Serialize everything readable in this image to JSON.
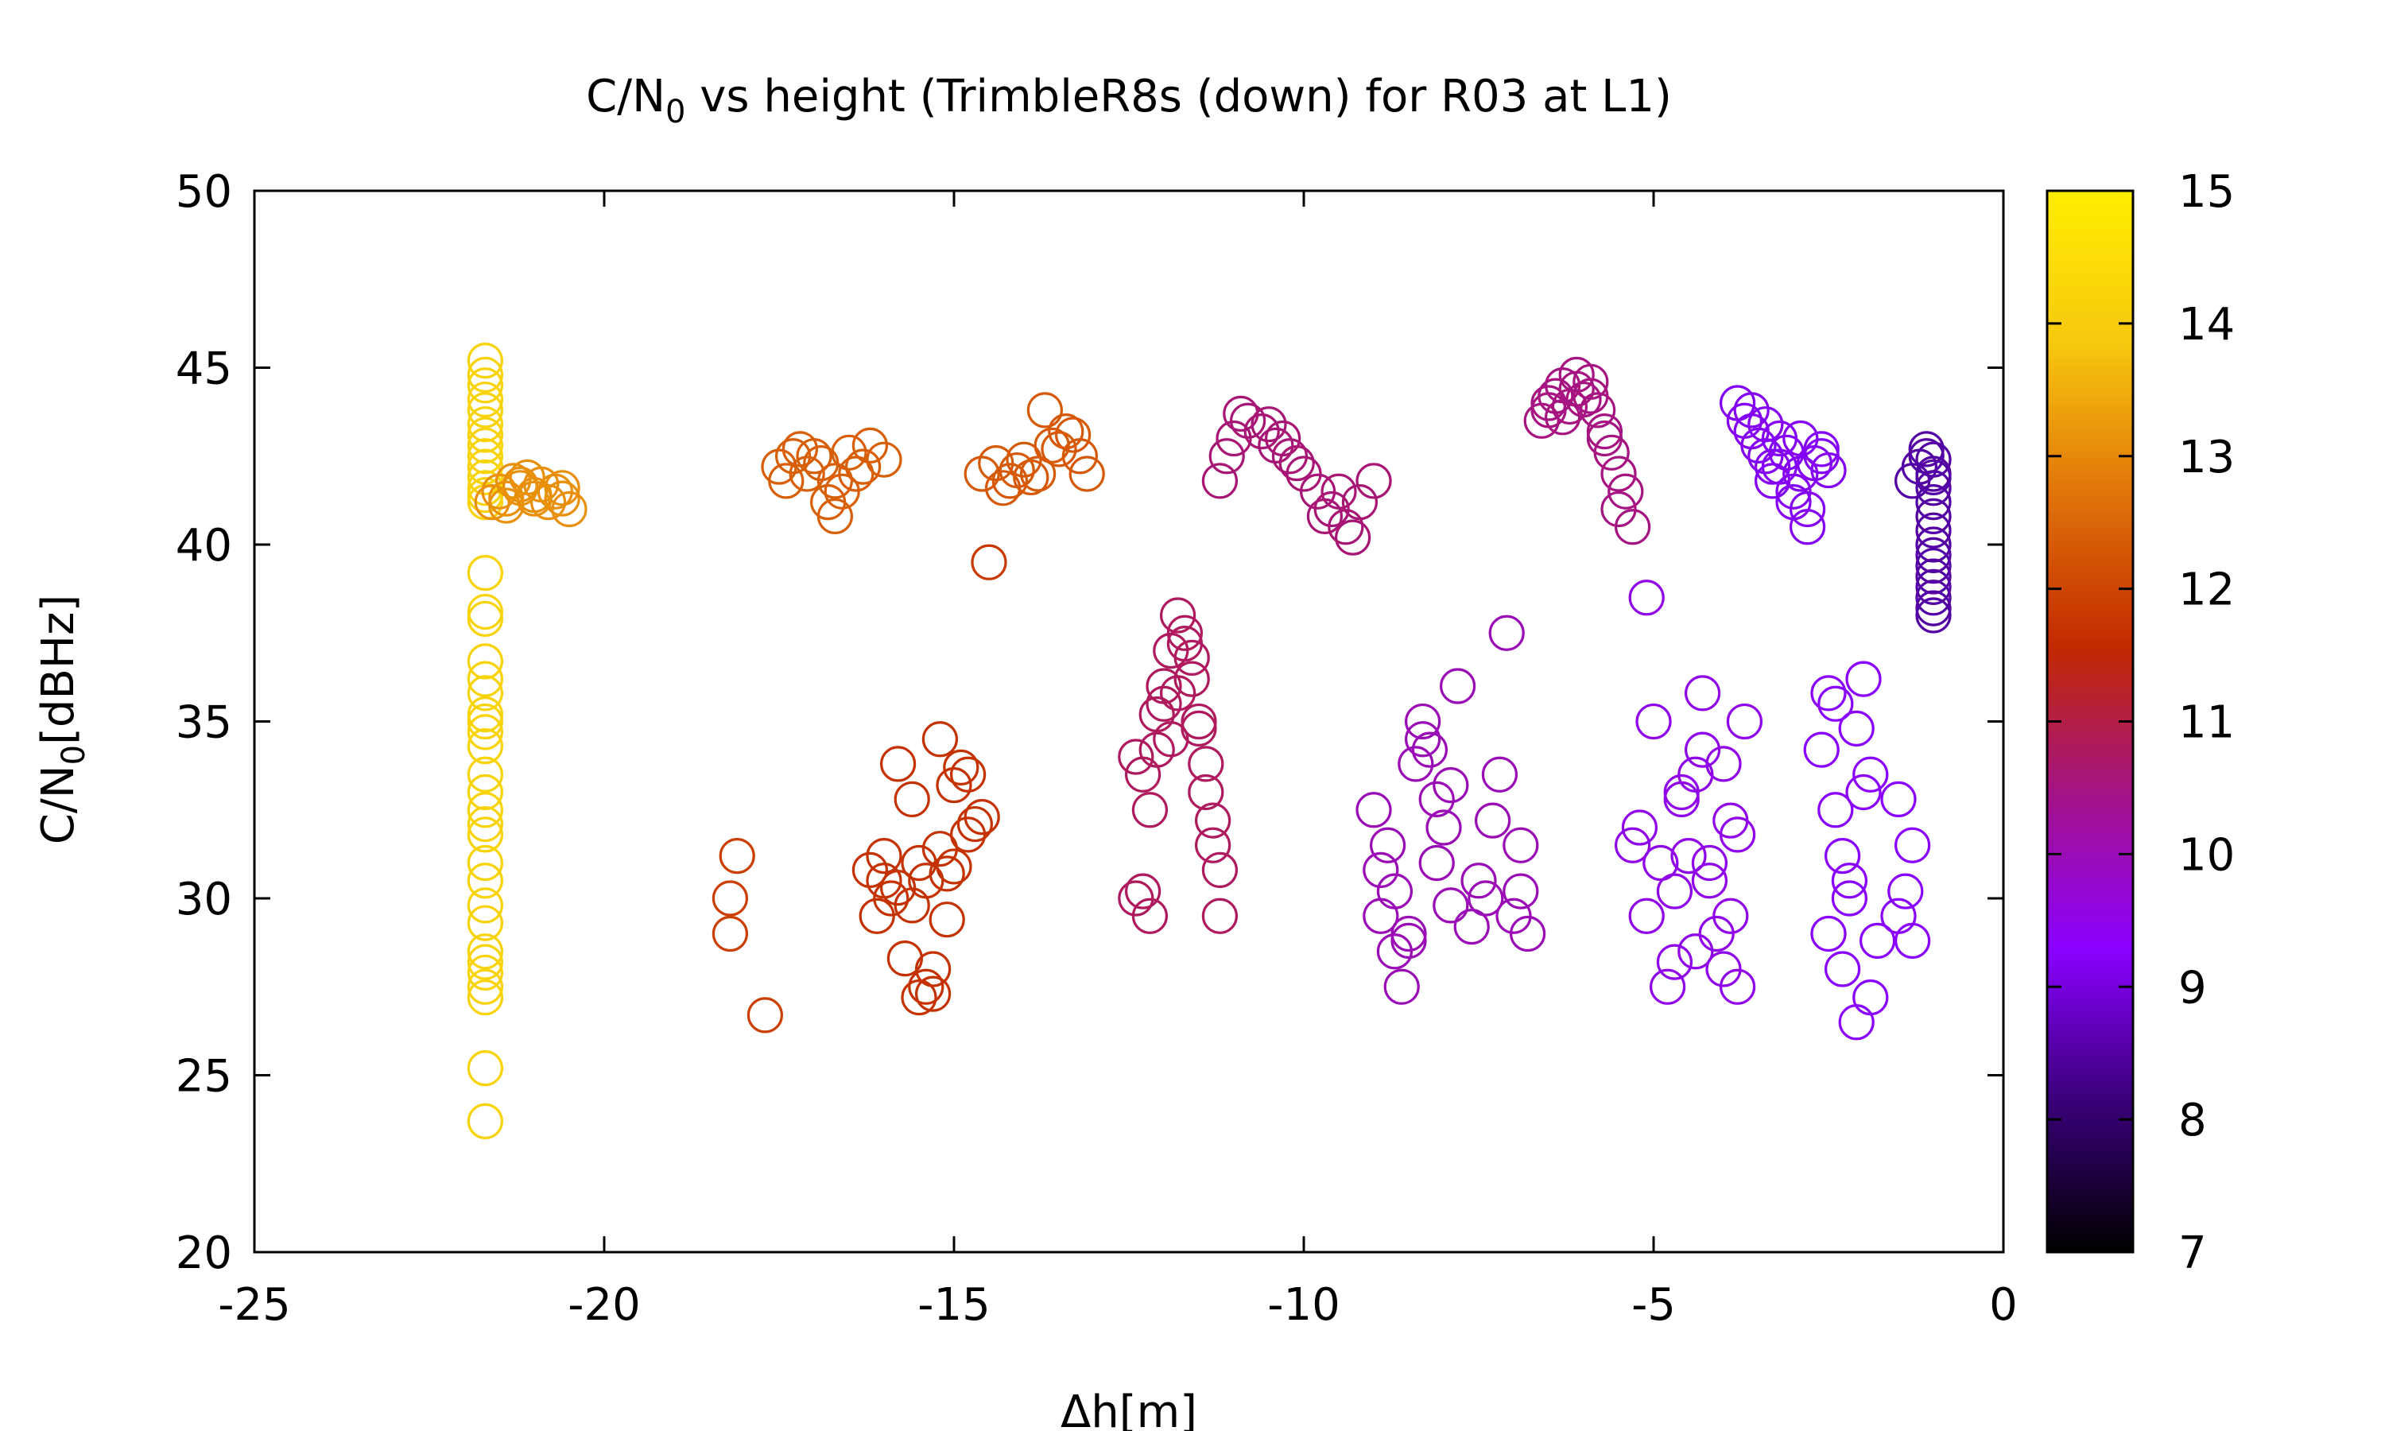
{
  "chart_data": {
    "type": "scatter",
    "title_main": "C/N",
    "title_sub": "0",
    "title_rest": " vs height (TrimbleR8s (down) for R03 at L1)",
    "xlabel": "Δh[m]",
    "ylabel_main": "C/N",
    "ylabel_sub": "0",
    "ylabel_rest": "[dBHz]",
    "xlim": [
      -25,
      0
    ],
    "ylim": [
      20,
      50
    ],
    "x_ticks": [
      -25,
      -20,
      -15,
      -10,
      -5,
      0
    ],
    "y_ticks": [
      20,
      25,
      30,
      35,
      40,
      45,
      50
    ],
    "colorbar": {
      "range": [
        7,
        15
      ],
      "ticks": [
        7,
        8,
        9,
        10,
        11,
        12,
        13,
        14,
        15
      ],
      "palette": [
        "#000000",
        "#3a007a",
        "#8a00ff",
        "#a4138a",
        "#c22a00",
        "#e0730a",
        "#f7c80e",
        "#ffee00"
      ]
    },
    "marker": "open-circle",
    "grid": false,
    "clusters": [
      {
        "c": 14.2,
        "x": [
          -21.7,
          -21.7,
          -21.7,
          -21.7,
          -21.7,
          -21.7,
          -21.7,
          -21.7,
          -21.7,
          -21.7,
          -21.7,
          -21.7,
          -21.7,
          -21.7
        ],
        "y": [
          45.2,
          44.8,
          44.5,
          44.1,
          43.8,
          43.4,
          43.1,
          42.8,
          42.5,
          42.2,
          41.9,
          41.6,
          41.4,
          41.2
        ]
      },
      {
        "c": 13.1,
        "x": [
          -21.6,
          -21.5,
          -21.4,
          -21.3,
          -21.2,
          -21.1,
          -21.0,
          -20.9,
          -20.8,
          -20.7,
          -20.6,
          -20.5,
          -21.4,
          -21.0,
          -20.6,
          -21.2
        ],
        "y": [
          41.2,
          41.5,
          41.3,
          41.8,
          41.6,
          41.9,
          41.4,
          41.7,
          41.2,
          41.5,
          41.3,
          41.0,
          41.1,
          41.3,
          41.6,
          41.7
        ]
      },
      {
        "c": 14.2,
        "x": [
          -21.7,
          -21.7,
          -21.7,
          -21.7,
          -21.7,
          -21.7,
          -21.7,
          -21.7,
          -21.7,
          -21.7,
          -21.7,
          -21.7,
          -21.7,
          -21.7,
          -21.7,
          -21.7,
          -21.7,
          -21.7,
          -21.7,
          -21.7,
          -21.7,
          -21.7,
          -21.7,
          -21.7,
          -21.7,
          -21.7
        ],
        "y": [
          39.2,
          38.1,
          37.9,
          36.7,
          36.2,
          35.8,
          35.2,
          35.0,
          34.7,
          34.3,
          33.5,
          33.0,
          32.5,
          32.1,
          31.8,
          31.0,
          30.5,
          29.8,
          29.3,
          28.5,
          28.2,
          27.9,
          27.5,
          27.2,
          25.2,
          23.7
        ]
      },
      {
        "c": 11.9,
        "x": [
          -18.1,
          -18.2,
          -18.2,
          -17.7
        ],
        "y": [
          31.2,
          30.0,
          29.0,
          26.7
        ]
      },
      {
        "c": 12.4,
        "x": [
          -17.5,
          -17.3,
          -17.1,
          -16.9,
          -16.7,
          -16.5,
          -16.3,
          -17.4,
          -17.0,
          -16.6,
          -16.2,
          -16.8,
          -16.4,
          -17.2,
          -16.0,
          -16.7
        ],
        "y": [
          42.2,
          42.5,
          42.0,
          42.3,
          41.8,
          42.6,
          42.2,
          41.8,
          42.5,
          41.5,
          42.8,
          41.2,
          42.0,
          42.7,
          42.4,
          40.8
        ]
      },
      {
        "c": 12.3,
        "x": [
          -14.6,
          -14.4,
          -14.2,
          -14.0,
          -13.8,
          -13.6,
          -13.4,
          -13.2,
          -13.1,
          -14.3,
          -13.9,
          -13.5,
          -13.7,
          -13.3,
          -14.1
        ],
        "y": [
          42.0,
          42.3,
          41.8,
          42.4,
          42.0,
          42.8,
          43.2,
          42.5,
          42.0,
          41.6,
          41.9,
          42.7,
          43.8,
          43.1,
          42.1
        ]
      },
      {
        "c": 11.8,
        "x": [
          -14.5
        ],
        "y": [
          39.5
        ]
      },
      {
        "c": 11.7,
        "x": [
          -16.2,
          -16.0,
          -15.8,
          -15.6,
          -15.4,
          -15.2,
          -15.0,
          -14.8,
          -14.6,
          -16.1,
          -15.9,
          -15.7,
          -15.5,
          -15.3,
          -15.1,
          -14.9,
          -14.7,
          -15.0,
          -15.2,
          -14.8,
          -15.8,
          -15.6,
          -15.4,
          -15.3,
          -15.1,
          -16.0,
          -15.5
        ],
        "y": [
          30.8,
          31.2,
          30.3,
          29.8,
          30.5,
          31.4,
          30.9,
          31.8,
          32.3,
          29.5,
          30.0,
          28.3,
          27.2,
          28.0,
          30.7,
          33.7,
          32.1,
          33.2,
          34.5,
          33.5,
          33.8,
          32.8,
          27.5,
          27.3,
          29.4,
          30.5,
          31.0
        ]
      },
      {
        "c": 10.8,
        "x": [
          -12.4,
          -12.3,
          -12.2,
          -12.1,
          -12.0,
          -11.9,
          -11.8,
          -11.7,
          -11.6,
          -11.5,
          -11.4,
          -11.3,
          -11.2,
          -12.3,
          -12.2,
          -11.9,
          -11.8,
          -11.6,
          -11.4,
          -11.2,
          -12.0,
          -11.7,
          -11.5,
          -11.3,
          -12.4,
          -12.1
        ],
        "y": [
          34.0,
          33.5,
          32.5,
          35.2,
          36.0,
          37.0,
          38.0,
          37.5,
          36.2,
          35.0,
          33.0,
          31.5,
          29.5,
          30.2,
          29.5,
          34.5,
          35.8,
          36.8,
          33.8,
          30.8,
          35.5,
          37.2,
          34.8,
          32.2,
          30.0,
          34.2
        ]
      },
      {
        "c": 10.6,
        "x": [
          -11.2,
          -11.0,
          -10.8,
          -10.6,
          -10.4,
          -10.2,
          -10.0,
          -9.8,
          -9.6,
          -9.4,
          -9.2,
          -9.0,
          -10.9,
          -10.5,
          -10.1,
          -9.7,
          -9.3,
          -11.1,
          -10.3,
          -9.5
        ],
        "y": [
          41.8,
          43.0,
          43.5,
          43.2,
          42.8,
          42.5,
          42.0,
          41.5,
          41.0,
          40.5,
          41.2,
          41.8,
          43.7,
          43.4,
          42.3,
          40.8,
          40.2,
          42.5,
          43.0,
          41.5
        ]
      },
      {
        "c": 10.0,
        "x": [
          -9.0,
          -8.9,
          -8.8,
          -8.7,
          -8.6,
          -8.5,
          -8.4,
          -8.3,
          -8.2,
          -8.1,
          -8.0,
          -7.9,
          -7.8,
          -8.9,
          -8.7,
          -8.5,
          -8.3,
          -8.1,
          -7.9,
          -7.5,
          -7.3,
          -7.1,
          -6.9,
          -6.8,
          -7.2,
          -7.0,
          -7.4,
          -6.9,
          -7.6
        ],
        "y": [
          32.5,
          30.8,
          31.5,
          28.5,
          27.5,
          29.0,
          33.8,
          35.0,
          34.2,
          32.8,
          32.0,
          33.2,
          36.0,
          29.5,
          30.2,
          28.8,
          34.5,
          31.0,
          29.8,
          30.5,
          32.2,
          37.5,
          31.5,
          29.0,
          33.5,
          29.5,
          30.0,
          30.2,
          29.2
        ]
      },
      {
        "c": 10.5,
        "x": [
          -6.6,
          -6.5,
          -6.4,
          -6.3,
          -6.2,
          -6.1,
          -6.0,
          -5.9,
          -5.8,
          -5.7,
          -5.6,
          -5.5,
          -5.4,
          -5.3,
          -6.5,
          -6.3,
          -6.1,
          -5.9,
          -5.7,
          -5.5
        ],
        "y": [
          43.5,
          43.8,
          44.2,
          44.5,
          43.9,
          44.4,
          44.1,
          44.6,
          43.8,
          43.2,
          42.6,
          42.0,
          41.5,
          40.5,
          44.0,
          43.6,
          44.8,
          44.2,
          43.0,
          41.0
        ]
      },
      {
        "c": 9.5,
        "x": [
          -5.1
        ],
        "y": [
          38.5
        ]
      },
      {
        "c": 9.5,
        "x": [
          -5.3,
          -5.2,
          -5.1,
          -5.0,
          -4.9,
          -4.8,
          -4.7,
          -4.6,
          -4.5,
          -4.4,
          -4.3,
          -4.2,
          -4.1,
          -4.0,
          -3.9,
          -3.8,
          -3.7,
          -4.6,
          -4.4,
          -4.2,
          -4.0,
          -3.8,
          -4.7,
          -4.3,
          -3.9
        ],
        "y": [
          31.5,
          32.0,
          29.5,
          35.0,
          31.0,
          27.5,
          30.2,
          32.8,
          31.2,
          33.5,
          35.8,
          31.0,
          29.0,
          28.0,
          29.5,
          27.5,
          35.0,
          33.0,
          28.5,
          30.5,
          33.8,
          31.8,
          28.2,
          34.2,
          32.2
        ]
      },
      {
        "c": 9.2,
        "x": [
          -3.8,
          -3.7,
          -3.6,
          -3.5,
          -3.4,
          -3.3,
          -3.2,
          -3.1,
          -3.0,
          -2.9,
          -2.8,
          -2.7,
          -2.6,
          -2.5,
          -3.6,
          -3.4,
          -3.2,
          -3.0,
          -2.8,
          -2.6,
          -3.3,
          -2.9
        ],
        "y": [
          44.0,
          43.5,
          43.2,
          42.8,
          42.5,
          42.2,
          43.0,
          42.6,
          41.5,
          42.0,
          41.0,
          42.3,
          42.7,
          42.1,
          43.8,
          43.4,
          42.2,
          41.2,
          40.5,
          42.5,
          41.8,
          43.0
        ]
      },
      {
        "c": 9.3,
        "x": [
          -2.6,
          -2.5,
          -2.4,
          -2.3,
          -2.2,
          -2.1,
          -2.0,
          -1.9,
          -1.8,
          -1.5,
          -1.4,
          -1.3,
          -2.5,
          -2.3,
          -2.1,
          -1.9,
          -1.5,
          -1.3,
          -2.4,
          -2.2,
          -2.0
        ],
        "y": [
          34.2,
          35.8,
          32.5,
          31.2,
          30.5,
          34.8,
          36.2,
          33.5,
          28.8,
          32.8,
          30.2,
          31.5,
          29.0,
          28.0,
          26.5,
          27.2,
          29.5,
          28.8,
          35.5,
          30.0,
          33.0
        ]
      },
      {
        "c": 8.5,
        "x": [
          -1.2,
          -1.1,
          -1.0,
          -1.0,
          -1.0,
          -1.0,
          -1.0,
          -1.0,
          -1.0,
          -1.0,
          -1.0,
          -1.0,
          -1.0,
          -1.0,
          -1.0,
          -1.0,
          -1.0,
          -1.3,
          -1.1
        ],
        "y": [
          42.2,
          42.5,
          42.0,
          41.6,
          41.2,
          40.8,
          40.4,
          40.0,
          39.7,
          39.4,
          39.1,
          38.8,
          38.5,
          38.2,
          38.0,
          42.4,
          41.9,
          41.8,
          42.7
        ]
      }
    ]
  }
}
